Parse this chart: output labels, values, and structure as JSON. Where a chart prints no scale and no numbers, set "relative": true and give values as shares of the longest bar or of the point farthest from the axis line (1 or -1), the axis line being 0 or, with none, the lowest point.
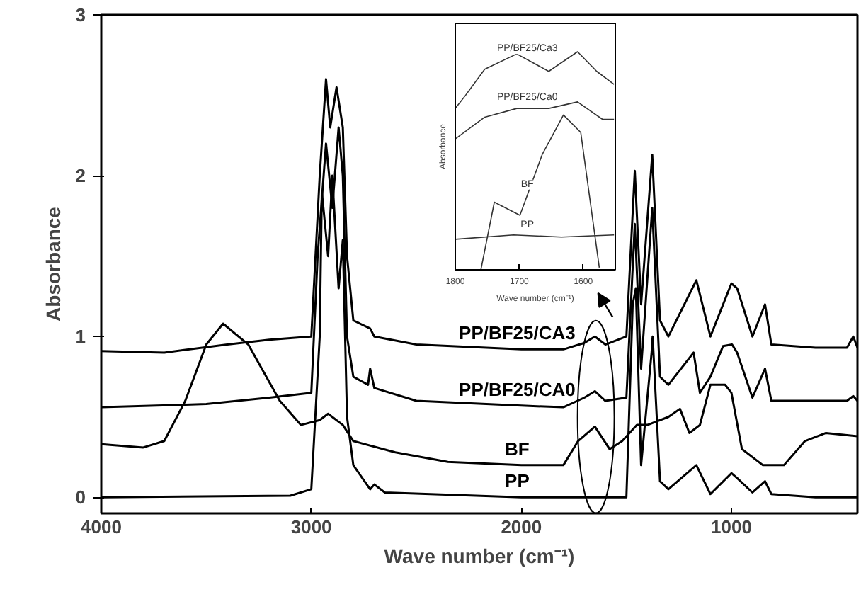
{
  "chart_data": [
    {
      "type": "line",
      "xlabel": "Wave number (cm⁻¹)",
      "ylabel": "Absorbance",
      "xlim": [
        4000,
        400
      ],
      "ylim": [
        -0.1,
        3
      ],
      "xticks": [
        4000,
        3000,
        2000,
        1000
      ],
      "yticks": [
        0,
        1,
        2,
        3
      ],
      "grid": false,
      "marker": "none",
      "line_style": "solid",
      "series": [
        {
          "name": "PP/BF25/CA3",
          "color": "#000000",
          "x": [
            4000,
            3700,
            3400,
            3200,
            3000,
            2960,
            2930,
            2910,
            2880,
            2850,
            2830,
            2800,
            2720,
            2700,
            2500,
            2000,
            1800,
            1700,
            1650,
            1600,
            1500,
            1460,
            1430,
            1377,
            1340,
            1300,
            1167,
            1100,
            1000,
            973,
            900,
            840,
            810,
            600,
            450,
            420,
            400
          ],
          "values": [
            0.91,
            0.9,
            0.95,
            0.98,
            1.0,
            2.0,
            2.6,
            2.3,
            2.55,
            2.3,
            1.5,
            1.1,
            1.05,
            1.0,
            0.95,
            0.92,
            0.92,
            0.96,
            1.0,
            0.95,
            1.0,
            2.03,
            1.2,
            2.13,
            1.1,
            1.0,
            1.35,
            1.0,
            1.33,
            1.3,
            1.0,
            1.2,
            0.95,
            0.93,
            0.93,
            1.0,
            0.93
          ]
        },
        {
          "name": "PP/BF25/CA0",
          "color": "#000000",
          "x": [
            4000,
            3500,
            3200,
            3000,
            2970,
            2930,
            2900,
            2870,
            2850,
            2830,
            2800,
            2730,
            2720,
            2700,
            2500,
            2000,
            1800,
            1700,
            1650,
            1600,
            1500,
            1460,
            1430,
            1377,
            1340,
            1300,
            1180,
            1150,
            1100,
            1040,
            997,
            973,
            900,
            840,
            810,
            450,
            420,
            400
          ],
          "values": [
            0.56,
            0.58,
            0.62,
            0.65,
            1.5,
            2.2,
            1.8,
            2.3,
            2.0,
            1.0,
            0.75,
            0.7,
            0.8,
            0.68,
            0.6,
            0.57,
            0.56,
            0.62,
            0.66,
            0.6,
            0.62,
            1.7,
            0.8,
            1.8,
            0.75,
            0.7,
            0.9,
            0.65,
            0.75,
            0.94,
            0.95,
            0.9,
            0.62,
            0.8,
            0.6,
            0.6,
            0.63,
            0.6
          ]
        },
        {
          "name": "BF",
          "color": "#000000",
          "x": [
            4000,
            3800,
            3700,
            3600,
            3500,
            3420,
            3300,
            3150,
            3050,
            2960,
            2920,
            2850,
            2800,
            2600,
            2350,
            2000,
            1800,
            1730,
            1650,
            1580,
            1520,
            1450,
            1400,
            1300,
            1245,
            1200,
            1150,
            1100,
            1030,
            1000,
            950,
            850,
            750,
            650,
            550,
            400
          ],
          "values": [
            0.33,
            0.31,
            0.35,
            0.6,
            0.95,
            1.08,
            0.95,
            0.6,
            0.45,
            0.48,
            0.52,
            0.45,
            0.35,
            0.28,
            0.22,
            0.2,
            0.2,
            0.35,
            0.44,
            0.3,
            0.35,
            0.45,
            0.45,
            0.5,
            0.55,
            0.4,
            0.45,
            0.7,
            0.7,
            0.65,
            0.3,
            0.2,
            0.2,
            0.35,
            0.4,
            0.38
          ]
        },
        {
          "name": "PP",
          "color": "#000000",
          "x": [
            4000,
            3100,
            3000,
            2960,
            2950,
            2920,
            2900,
            2870,
            2850,
            2830,
            2800,
            2720,
            2700,
            2650,
            2000,
            1500,
            1470,
            1455,
            1430,
            1380,
            1375,
            1340,
            1300,
            1167,
            1100,
            1000,
            973,
            900,
            840,
            810,
            600,
            400
          ],
          "values": [
            0.0,
            0.01,
            0.05,
            1.0,
            1.9,
            1.5,
            2.0,
            1.3,
            1.6,
            0.5,
            0.2,
            0.05,
            0.08,
            0.03,
            0.0,
            0.0,
            1.2,
            1.3,
            0.2,
            0.9,
            1.0,
            0.1,
            0.05,
            0.2,
            0.02,
            0.15,
            0.12,
            0.03,
            0.1,
            0.02,
            0.0,
            0.0
          ]
        }
      ]
    },
    {
      "type": "line",
      "xlabel": "Wave number (cm⁻¹)",
      "ylabel": "Absorbance",
      "relative": true,
      "xlim": [
        1800,
        1550
      ],
      "xticks": [
        1800,
        1700,
        1600
      ],
      "grid": false,
      "marker": "none",
      "line_style": "solid",
      "series": [
        {
          "name": "PP/BF25/Ca3",
          "color": "#333333",
          "x": [
            1800,
            1784,
            1754,
            1704,
            1654,
            1609,
            1579,
            1552
          ],
          "values": [
            0.74,
            0.8,
            0.92,
            0.99,
            0.91,
            1.0,
            0.91,
            0.85
          ]
        },
        {
          "name": "PP/BF25/Ca0",
          "color": "#333333",
          "x": [
            1800,
            1754,
            1704,
            1654,
            1609,
            1570,
            1552
          ],
          "values": [
            0.6,
            0.7,
            0.74,
            0.74,
            0.77,
            0.69,
            0.69
          ]
        },
        {
          "name": "BF",
          "color": "#333333",
          "x": [
            1760,
            1739,
            1699,
            1664,
            1631,
            1604,
            1575
          ],
          "values": [
            0.0,
            0.31,
            0.25,
            0.53,
            0.71,
            0.63,
            0.01
          ]
        },
        {
          "name": "PP",
          "color": "#333333",
          "x": [
            1800,
            1709,
            1634,
            1552
          ],
          "values": [
            0.14,
            0.16,
            0.15,
            0.16
          ]
        }
      ]
    }
  ]
}
